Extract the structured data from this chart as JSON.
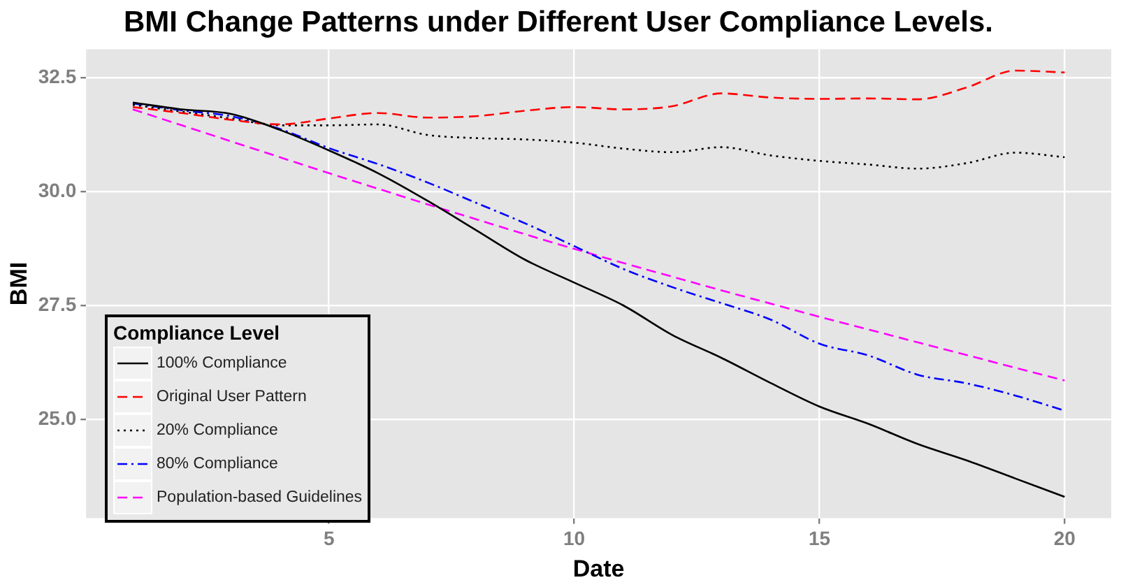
{
  "chart_data": {
    "type": "line",
    "title": "BMI Change Patterns under Different User Compliance Levels.",
    "xlabel": "Date",
    "ylabel": "BMI",
    "legend_title": "Compliance Level",
    "x": [
      1,
      2,
      3,
      4,
      5,
      6,
      7,
      8,
      9,
      10,
      11,
      12,
      13,
      14,
      15,
      16,
      17,
      18,
      19,
      20
    ],
    "series": [
      {
        "name": "100% Compliance",
        "color": "#000000",
        "line_style": "solid",
        "values": [
          31.95,
          31.8,
          31.7,
          31.35,
          30.9,
          30.4,
          29.8,
          29.15,
          28.5,
          28.0,
          27.5,
          26.85,
          26.35,
          25.8,
          25.28,
          24.9,
          24.46,
          24.1,
          23.7,
          23.3
        ]
      },
      {
        "name": "Original User Pattern",
        "color": "#ff0000",
        "line_style": "dashed",
        "values": [
          31.85,
          31.72,
          31.57,
          31.47,
          31.6,
          31.72,
          31.62,
          31.65,
          31.77,
          31.85,
          31.8,
          31.87,
          32.15,
          32.06,
          32.03,
          32.04,
          32.02,
          32.28,
          32.65,
          32.61
        ]
      },
      {
        "name": "20% Compliance",
        "color": "#000000",
        "line_style": "dotted",
        "values": [
          31.9,
          31.75,
          31.6,
          31.45,
          31.45,
          31.47,
          31.24,
          31.17,
          31.14,
          31.07,
          30.94,
          30.86,
          30.97,
          30.79,
          30.67,
          30.59,
          30.5,
          30.62,
          30.85,
          30.75
        ]
      },
      {
        "name": "80% Compliance",
        "color": "#0000ff",
        "line_style": "dashdot",
        "values": [
          31.93,
          31.78,
          31.65,
          31.37,
          30.95,
          30.6,
          30.2,
          29.75,
          29.3,
          28.8,
          28.3,
          27.9,
          27.55,
          27.19,
          26.66,
          26.4,
          25.98,
          25.79,
          25.52,
          25.19
        ]
      },
      {
        "name": "Population-based Guidelines",
        "color": "#ff00ff",
        "line_style": "dashed",
        "values": [
          31.8,
          31.45,
          31.1,
          30.75,
          30.4,
          30.06,
          29.72,
          29.39,
          29.06,
          28.74,
          28.43,
          28.13,
          27.83,
          27.54,
          27.25,
          26.97,
          26.69,
          26.41,
          26.13,
          25.85
        ]
      }
    ],
    "xlim": [
      0.05,
      20.95
    ],
    "xticks": [
      5,
      10,
      15,
      20
    ],
    "ylim": [
      22.83,
      33.12
    ],
    "yticks": [
      {
        "value": 25,
        "label": "25.0"
      },
      27.5,
      {
        "value": 30,
        "label": "30.0"
      },
      32.5
    ],
    "grid": true,
    "legend": "bottom left",
    "marker": "none"
  }
}
